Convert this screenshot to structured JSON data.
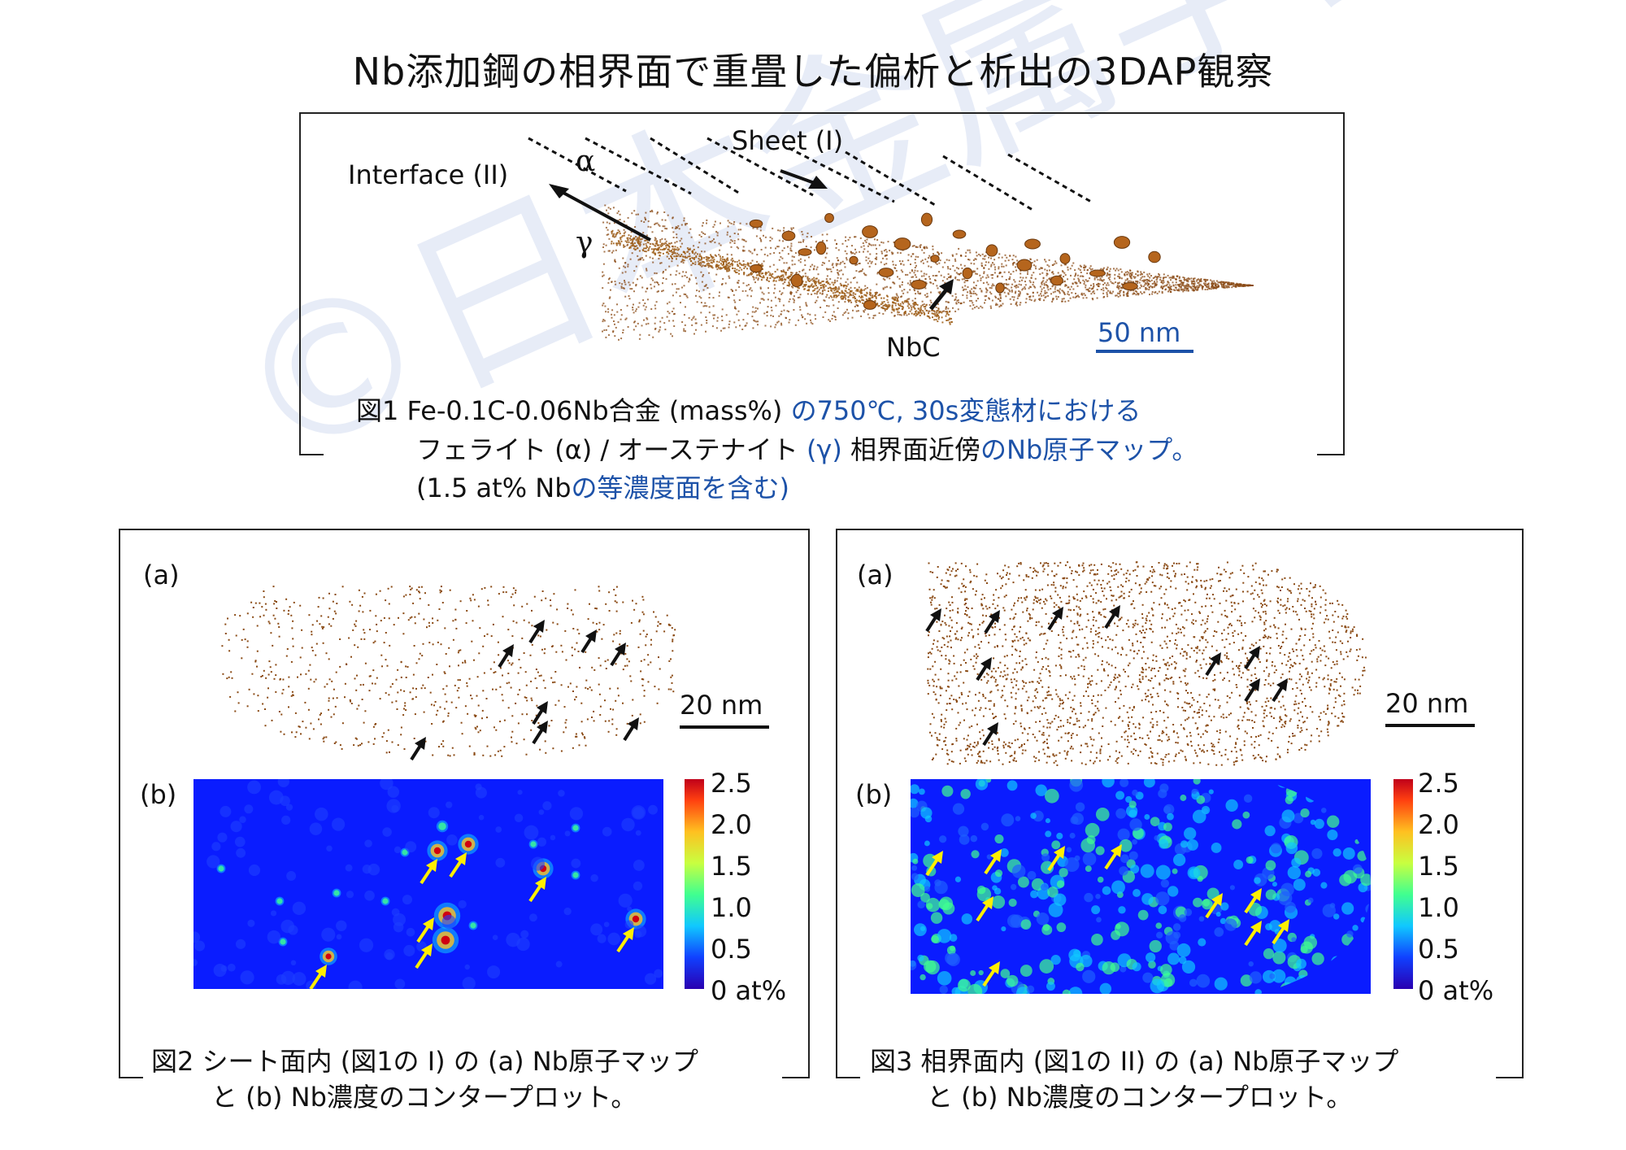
{
  "title": "Nb添加鋼の相界面で重畳した偏析と析出の3DAP観察",
  "watermark": "©日本金属学会",
  "fig1": {
    "labels": {
      "sheet": "Sheet (I)",
      "interface": "Interface (II)",
      "alpha": "α",
      "gamma": "γ",
      "nbc": "NbC",
      "scale": "50 nm"
    },
    "caption": {
      "line1_black": "図1  Fe-0.1C-0.06Nb合金 (mass%) ",
      "line1_blue": "の750℃, 30s変態材における",
      "line2_black": "フェライト (α) / オーステナイト ",
      "line2_blue": "(γ)",
      "line2_rest": " 相界面近傍",
      "line2_blue2": "のNb原子マップ。",
      "line3_black": "(1.5 at% Nb",
      "line3_blue": "の等濃度面を含む)"
    }
  },
  "fig2": {
    "label_a": "(a)",
    "label_b": "(b)",
    "scale": "20 nm",
    "colorbar_ticks": [
      "2.5",
      "2.0",
      "1.5",
      "1.0",
      "0.5",
      "0 at%"
    ],
    "caption_line1": "図2  シート面内 (図1の I) の (a) Nb原子マップ",
    "caption_line2": "と (b) Nb濃度のコンタープロット。"
  },
  "fig3": {
    "label_a": "(a)",
    "label_b": "(b)",
    "scale": "20 nm",
    "colorbar_ticks": [
      "2.5",
      "2.0",
      "1.5",
      "1.0",
      "0.5",
      "0 at%"
    ],
    "caption_line1": "図3  相界面内 (図1の II) の (a) Nb原子マップ",
    "caption_line2": "と (b) Nb濃度のコンタープロット。"
  },
  "colors": {
    "atom": "#8a4a14",
    "particle": "#b5651d",
    "contour_bg": "#0a1cff",
    "arrow_black": "#111111",
    "arrow_yellow": "#ffee00",
    "caption_blue": "#1d52a8"
  }
}
